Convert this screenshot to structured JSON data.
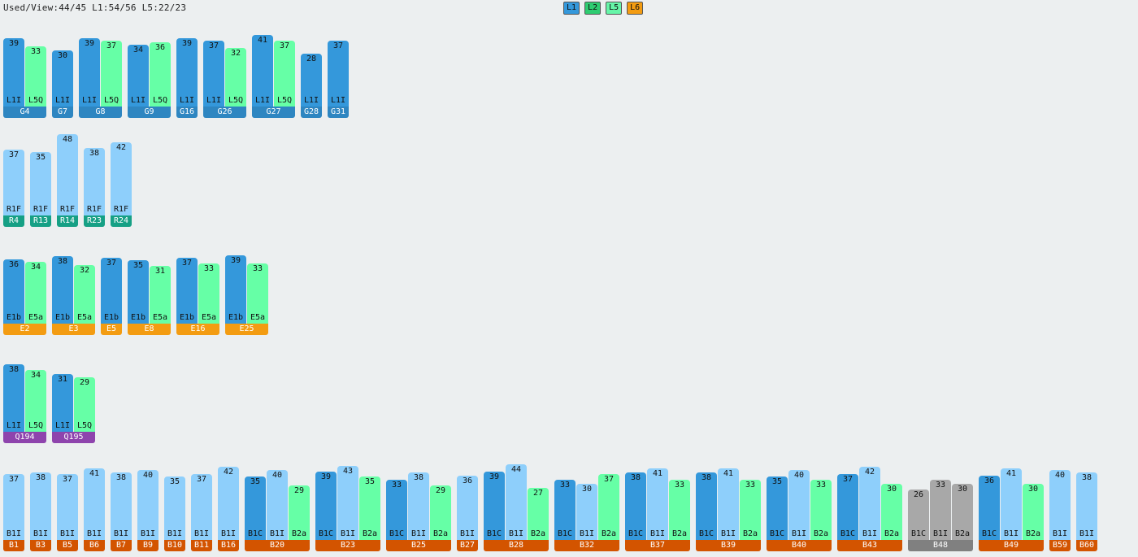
{
  "status_line": "Used/View:44/45 L1:54/56 L5:22/23",
  "legend": [
    {
      "label": "L1",
      "color": "#3498db"
    },
    {
      "label": "L2",
      "color": "#2ecc71"
    },
    {
      "label": "L5",
      "color": "#66f5a8"
    },
    {
      "label": "L6",
      "color": "#f39c12"
    }
  ],
  "colors": {
    "L1I": "#3498db",
    "L5Q": "#66ffa6",
    "R1F": "#8ecffb",
    "E1b": "#3498db",
    "E5a": "#66ffa6",
    "B1C": "#3498db",
    "B1I": "#8ecffb",
    "B2a": "#66ffa6",
    "grey_bar": "#a8a8a8",
    "G_group": "#2e86c1",
    "R_group": "#16a085",
    "E_group": "#f39c12",
    "Q_group": "#8e44ad",
    "B_group": "#d35400",
    "grey_group": "#808080"
  },
  "groups": [
    {
      "name": "G4",
      "cls": "G_group",
      "bars": [
        {
          "label": "L1I",
          "value": 39
        },
        {
          "label": "L5Q",
          "value": 33
        }
      ]
    },
    {
      "name": "G7",
      "cls": "G_group",
      "bars": [
        {
          "label": "L1I",
          "value": 30
        }
      ]
    },
    {
      "name": "G8",
      "cls": "G_group",
      "bars": [
        {
          "label": "L1I",
          "value": 39
        },
        {
          "label": "L5Q",
          "value": 37
        }
      ]
    },
    {
      "name": "G9",
      "cls": "G_group",
      "bars": [
        {
          "label": "L1I",
          "value": 34
        },
        {
          "label": "L5Q",
          "value": 36
        }
      ]
    },
    {
      "name": "G16",
      "cls": "G_group",
      "bars": [
        {
          "label": "L1I",
          "value": 39
        }
      ]
    },
    {
      "name": "G26",
      "cls": "G_group",
      "bars": [
        {
          "label": "L1I",
          "value": 37
        },
        {
          "label": "L5Q",
          "value": 32
        }
      ]
    },
    {
      "name": "G27",
      "cls": "G_group",
      "bars": [
        {
          "label": "L1I",
          "value": 41
        },
        {
          "label": "L5Q",
          "value": 37
        }
      ]
    },
    {
      "name": "G28",
      "cls": "G_group",
      "bars": [
        {
          "label": "L1I",
          "value": 28
        }
      ]
    },
    {
      "name": "G31",
      "cls": "G_group",
      "bars": [
        {
          "label": "L1I",
          "value": 37
        }
      ]
    },
    {
      "name": "R4",
      "cls": "R_group",
      "bars": [
        {
          "label": "R1F",
          "value": 37
        }
      ]
    },
    {
      "name": "R13",
      "cls": "R_group",
      "bars": [
        {
          "label": "R1F",
          "value": 35
        }
      ]
    },
    {
      "name": "R14",
      "cls": "R_group",
      "bars": [
        {
          "label": "R1F",
          "value": 48
        }
      ]
    },
    {
      "name": "R23",
      "cls": "R_group",
      "bars": [
        {
          "label": "R1F",
          "value": 38
        }
      ]
    },
    {
      "name": "R24",
      "cls": "R_group",
      "bars": [
        {
          "label": "R1F",
          "value": 42
        }
      ]
    },
    {
      "name": "E2",
      "cls": "E_group",
      "bars": [
        {
          "label": "E1b",
          "value": 36
        },
        {
          "label": "E5a",
          "value": 34
        }
      ]
    },
    {
      "name": "E3",
      "cls": "E_group",
      "bars": [
        {
          "label": "E1b",
          "value": 38
        },
        {
          "label": "E5a",
          "value": 32
        }
      ]
    },
    {
      "name": "E5",
      "cls": "E_group",
      "bars": [
        {
          "label": "E1b",
          "value": 37
        }
      ]
    },
    {
      "name": "E8",
      "cls": "E_group",
      "bars": [
        {
          "label": "E1b",
          "value": 35
        },
        {
          "label": "E5a",
          "value": 31
        }
      ]
    },
    {
      "name": "E16",
      "cls": "E_group",
      "bars": [
        {
          "label": "E1b",
          "value": 37
        },
        {
          "label": "E5a",
          "value": 33
        }
      ]
    },
    {
      "name": "E25",
      "cls": "E_group",
      "bars": [
        {
          "label": "E1b",
          "value": 39
        },
        {
          "label": "E5a",
          "value": 33
        }
      ]
    },
    {
      "name": "Q194",
      "cls": "Q_group",
      "bars": [
        {
          "label": "L1I",
          "value": 38
        },
        {
          "label": "L5Q",
          "value": 34
        }
      ]
    },
    {
      "name": "Q195",
      "cls": "Q_group",
      "bars": [
        {
          "label": "L1I",
          "value": 31
        },
        {
          "label": "L5Q",
          "value": 29
        }
      ]
    },
    {
      "name": "B1",
      "cls": "B_group",
      "bars": [
        {
          "label": "B1I",
          "value": 37
        }
      ]
    },
    {
      "name": "B3",
      "cls": "B_group",
      "bars": [
        {
          "label": "B1I",
          "value": 38
        }
      ]
    },
    {
      "name": "B5",
      "cls": "B_group",
      "bars": [
        {
          "label": "B1I",
          "value": 37
        }
      ]
    },
    {
      "name": "B6",
      "cls": "B_group",
      "bars": [
        {
          "label": "B1I",
          "value": 41
        }
      ]
    },
    {
      "name": "B7",
      "cls": "B_group",
      "bars": [
        {
          "label": "B1I",
          "value": 38
        }
      ]
    },
    {
      "name": "B9",
      "cls": "B_group",
      "bars": [
        {
          "label": "B1I",
          "value": 40
        }
      ]
    },
    {
      "name": "B10",
      "cls": "B_group",
      "bars": [
        {
          "label": "B1I",
          "value": 35
        }
      ]
    },
    {
      "name": "B11",
      "cls": "B_group",
      "bars": [
        {
          "label": "B1I",
          "value": 37
        }
      ]
    },
    {
      "name": "B16",
      "cls": "B_group",
      "bars": [
        {
          "label": "B1I",
          "value": 42
        }
      ]
    },
    {
      "name": "B20",
      "cls": "B_group",
      "bars": [
        {
          "label": "B1C",
          "value": 35
        },
        {
          "label": "B1I",
          "value": 40
        },
        {
          "label": "B2a",
          "value": 29
        }
      ]
    },
    {
      "name": "B23",
      "cls": "B_group",
      "bars": [
        {
          "label": "B1C",
          "value": 39
        },
        {
          "label": "B1I",
          "value": 43
        },
        {
          "label": "B2a",
          "value": 35
        }
      ]
    },
    {
      "name": "B25",
      "cls": "B_group",
      "bars": [
        {
          "label": "B1C",
          "value": 33
        },
        {
          "label": "B1I",
          "value": 38
        },
        {
          "label": "B2a",
          "value": 29
        }
      ]
    },
    {
      "name": "B27",
      "cls": "B_group",
      "bars": [
        {
          "label": "B1I",
          "value": 36
        }
      ]
    },
    {
      "name": "B28",
      "cls": "B_group",
      "bars": [
        {
          "label": "B1C",
          "value": 39
        },
        {
          "label": "B1I",
          "value": 44
        },
        {
          "label": "B2a",
          "value": 27
        }
      ]
    },
    {
      "name": "B32",
      "cls": "B_group",
      "bars": [
        {
          "label": "B1C",
          "value": 33
        },
        {
          "label": "B1I",
          "value": 30
        },
        {
          "label": "B2a",
          "value": 37
        }
      ]
    },
    {
      "name": "B37",
      "cls": "B_group",
      "bars": [
        {
          "label": "B1C",
          "value": 38
        },
        {
          "label": "B1I",
          "value": 41
        },
        {
          "label": "B2a",
          "value": 33
        }
      ]
    },
    {
      "name": "B39",
      "cls": "B_group",
      "bars": [
        {
          "label": "B1C",
          "value": 38
        },
        {
          "label": "B1I",
          "value": 41
        },
        {
          "label": "B2a",
          "value": 33
        }
      ]
    },
    {
      "name": "B40",
      "cls": "B_group",
      "bars": [
        {
          "label": "B1C",
          "value": 35
        },
        {
          "label": "B1I",
          "value": 40
        },
        {
          "label": "B2a",
          "value": 33
        }
      ]
    },
    {
      "name": "B43",
      "cls": "B_group",
      "bars": [
        {
          "label": "B1C",
          "value": 37
        },
        {
          "label": "B1I",
          "value": 42
        },
        {
          "label": "B2a",
          "value": 30
        }
      ]
    },
    {
      "name": "B48",
      "cls": "grey_group",
      "grey": true,
      "bars": [
        {
          "label": "B1C",
          "value": 26
        },
        {
          "label": "B1I",
          "value": 33
        },
        {
          "label": "B2a",
          "value": 30
        }
      ]
    },
    {
      "name": "B49",
      "cls": "B_group",
      "bars": [
        {
          "label": "B1C",
          "value": 36
        },
        {
          "label": "B1I",
          "value": 41
        },
        {
          "label": "B2a",
          "value": 30
        }
      ]
    },
    {
      "name": "B59",
      "cls": "B_group",
      "bars": [
        {
          "label": "B1I",
          "value": 40
        }
      ]
    },
    {
      "name": "B60",
      "cls": "B_group",
      "bars": [
        {
          "label": "B1I",
          "value": 38
        }
      ]
    }
  ]
}
